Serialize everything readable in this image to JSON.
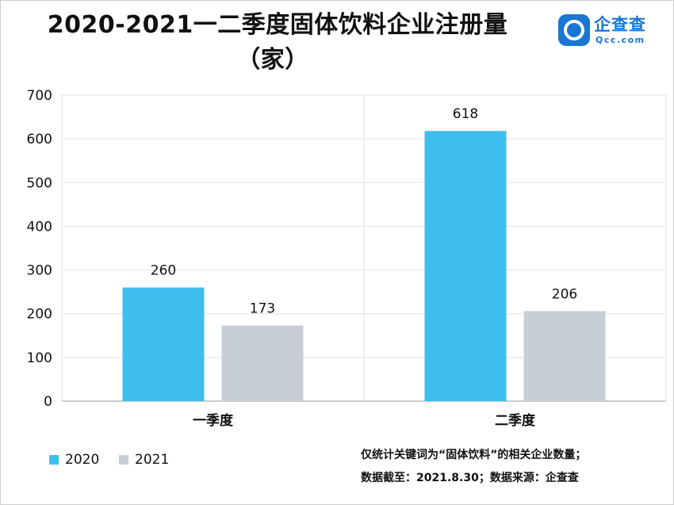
{
  "title_line1": "2020-2021一二季度固体饮料企业注册量",
  "title_line2": "（家）",
  "logo": {
    "name": "企查查",
    "domain": "Qcc.com",
    "brand_color": "#1a76d2"
  },
  "chart_data": {
    "type": "bar",
    "categories": [
      "一季度",
      "二季度"
    ],
    "series": [
      {
        "name": "2020",
        "values": [
          260,
          618
        ],
        "color": "#3dbfee"
      },
      {
        "name": "2021",
        "values": [
          173,
          206
        ],
        "color": "#c8ced6"
      }
    ],
    "ylim": [
      0,
      700
    ],
    "yticks": [
      0,
      100,
      200,
      300,
      400,
      500,
      600,
      700
    ],
    "ylabel": "",
    "xlabel": "",
    "legend": "bottom-left",
    "grid": true
  },
  "notes": {
    "line1": "仅统计关键词为“固体饮料”的相关企业数量；",
    "line2": "数据截至：2021.8.30；数据来源：企查查"
  }
}
